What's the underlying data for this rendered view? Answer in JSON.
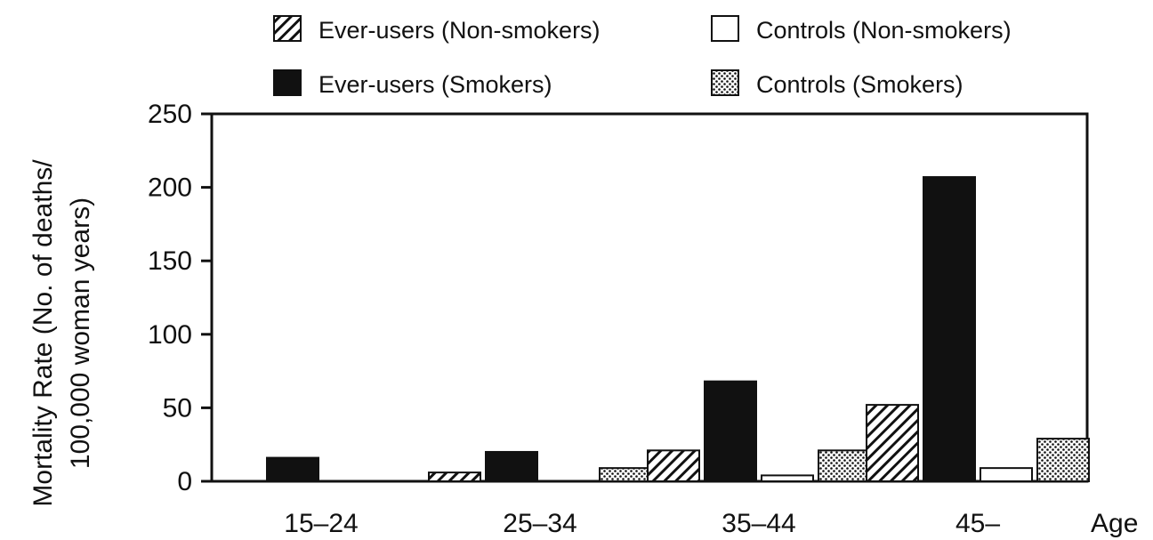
{
  "chart_data": {
    "type": "bar",
    "categories": [
      "15–24",
      "25–34",
      "35–44",
      "45–"
    ],
    "xlabel": "Age",
    "ylabel_lines": [
      "Mortality Rate (No. of deaths/",
      "100,000 woman years)"
    ],
    "ylim": [
      0,
      250
    ],
    "yticks": [
      0,
      50,
      100,
      150,
      200,
      250
    ],
    "legend_position": "top",
    "series": [
      {
        "name": "Ever-users (Non-smokers)",
        "pattern": "hatch",
        "values": [
          0,
          6,
          21,
          52
        ]
      },
      {
        "name": "Ever-users (Smokers)",
        "pattern": "solid",
        "values": [
          16,
          20,
          68,
          207
        ]
      },
      {
        "name": "Controls (Non-smokers)",
        "pattern": "empty",
        "values": [
          0,
          0,
          4,
          9
        ]
      },
      {
        "name": "Controls (Smokers)",
        "pattern": "dotted",
        "values": [
          0,
          9,
          21,
          29
        ]
      }
    ],
    "colors": {
      "ink": "#111111",
      "background": "#ffffff"
    }
  }
}
